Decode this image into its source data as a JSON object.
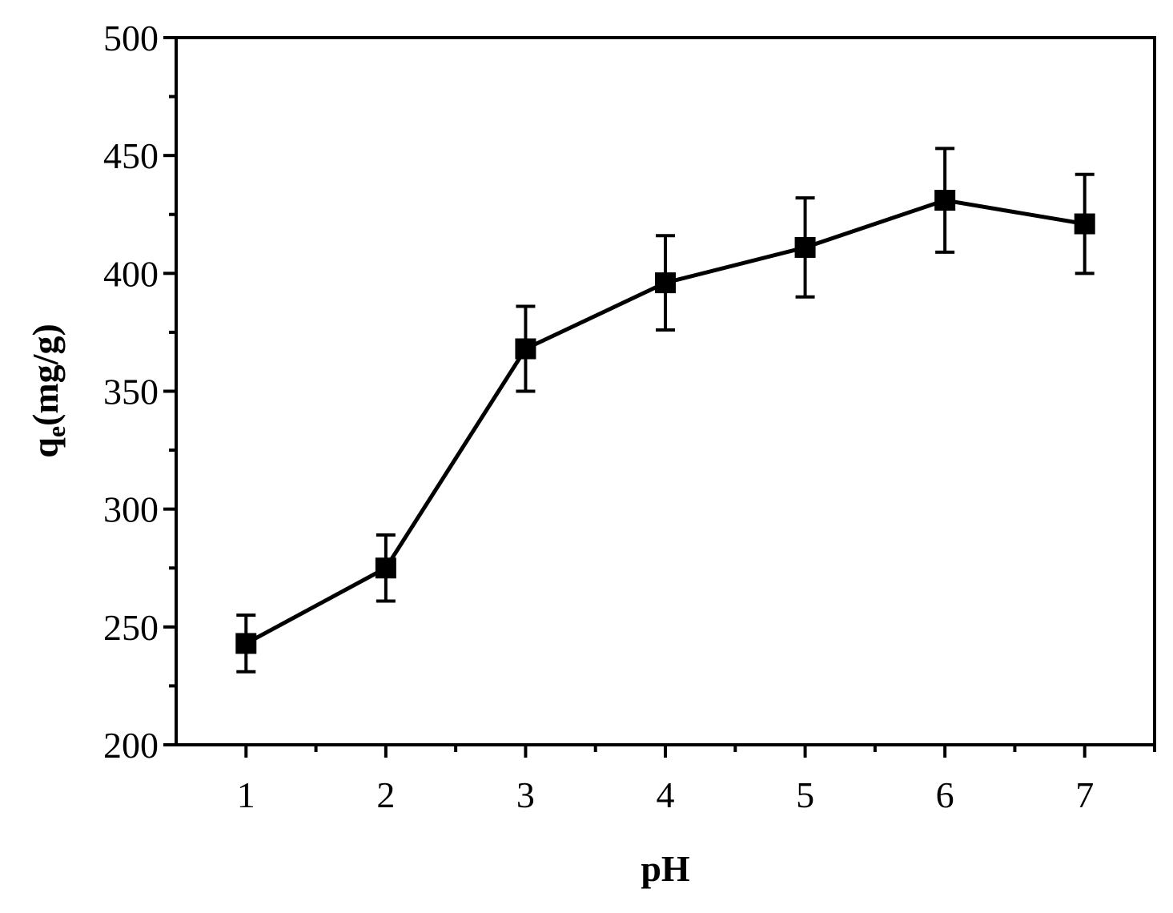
{
  "chart_data": {
    "type": "line",
    "title": "",
    "xlabel": "pH",
    "ylabel_main": "q",
    "ylabel_sub": "e",
    "ylabel_unit": "(mg/g)",
    "xlim": [
      0.5,
      7.5
    ],
    "ylim": [
      200,
      500
    ],
    "x_ticks": [
      1,
      2,
      3,
      4,
      5,
      6,
      7
    ],
    "x_minor_ticks": [
      1.5,
      2.5,
      3.5,
      4.5,
      5.5,
      6.5,
      7.5
    ],
    "y_ticks": [
      200,
      250,
      300,
      350,
      400,
      450,
      500
    ],
    "y_minor_ticks": [
      225,
      275,
      325,
      375,
      425,
      475
    ],
    "grid": false,
    "legend": "none",
    "series": [
      {
        "x": [
          1,
          2,
          3,
          4,
          5,
          6,
          7
        ],
        "y": [
          243,
          275,
          368,
          396,
          411,
          431,
          421
        ],
        "error": [
          12,
          14,
          18,
          20,
          21,
          22,
          21
        ],
        "marker": "square",
        "color": "#000000"
      }
    ]
  }
}
